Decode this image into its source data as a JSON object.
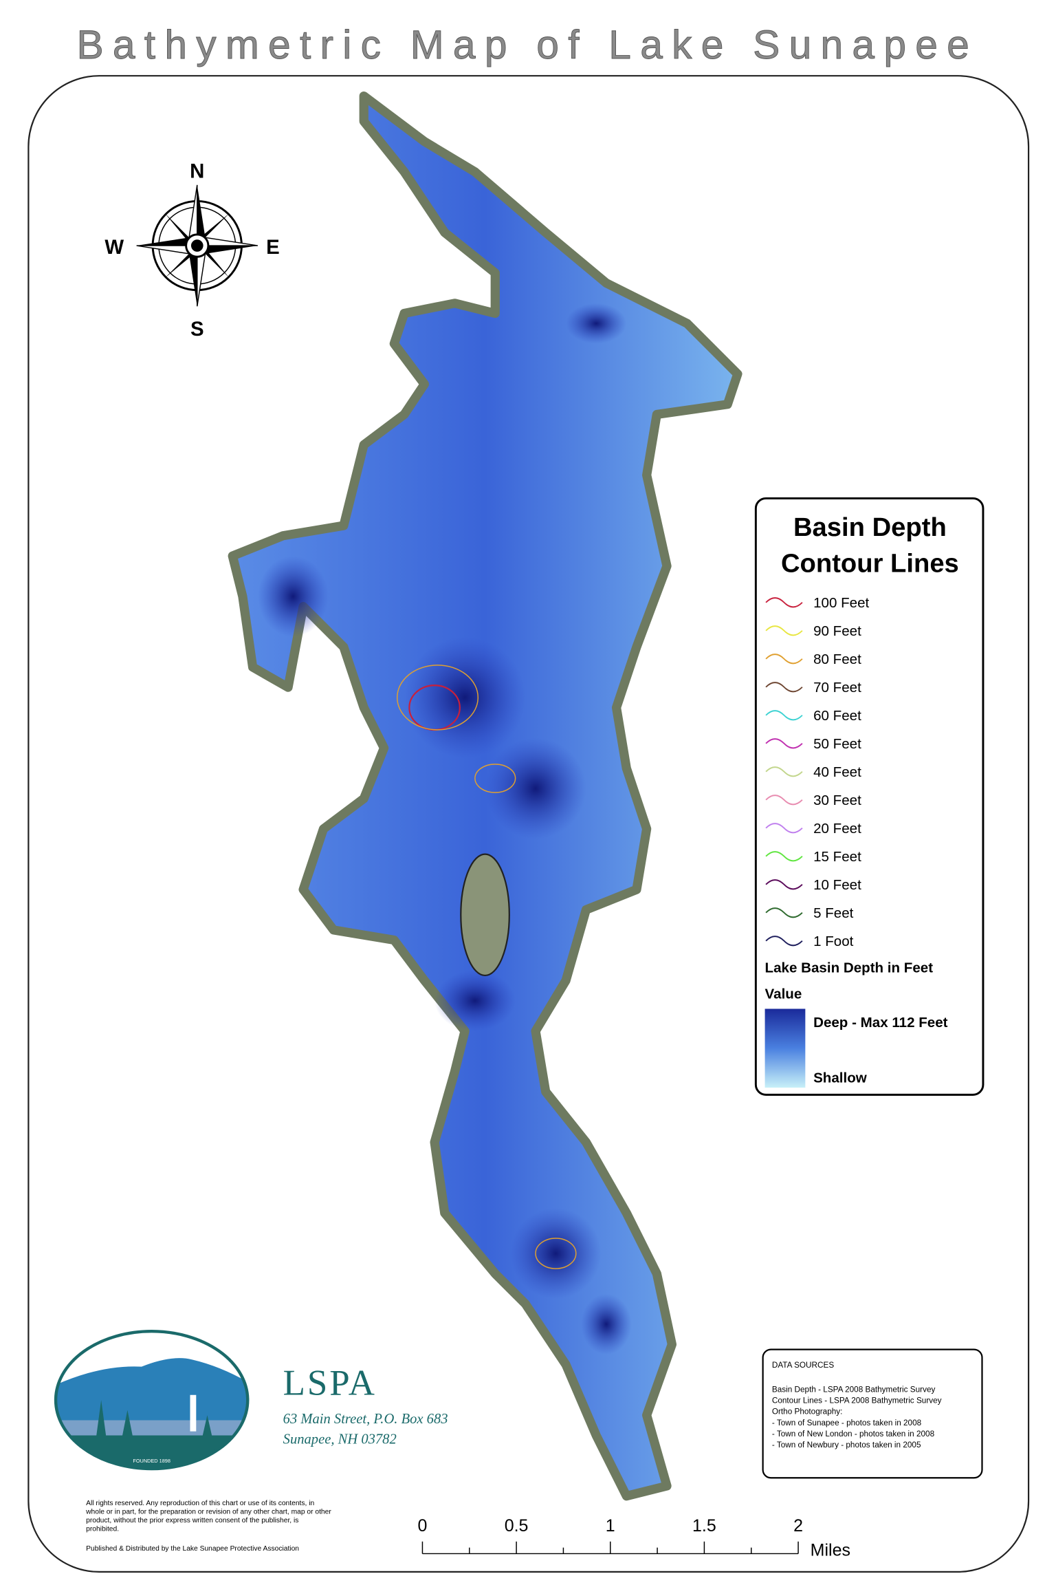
{
  "title": "Bathymetric Map of Lake Sunapee",
  "compass": {
    "north": "N",
    "south": "S",
    "east": "E",
    "west": "W"
  },
  "legend": {
    "title_lines": [
      "Basin Depth",
      "Contour Lines"
    ],
    "items": [
      {
        "name": "100 Feet",
        "color": "#c8203c"
      },
      {
        "name": "90 Feet",
        "color": "#e8e640"
      },
      {
        "name": "80 Feet",
        "color": "#e0a030"
      },
      {
        "name": "70 Feet",
        "color": "#6e4632"
      },
      {
        "name": "60 Feet",
        "color": "#3cd2d2"
      },
      {
        "name": "50 Feet",
        "color": "#c030b0"
      },
      {
        "name": "40 Feet",
        "color": "#c2d68c"
      },
      {
        "name": "30 Feet",
        "color": "#e88cb0"
      },
      {
        "name": "20 Feet",
        "color": "#c080ee"
      },
      {
        "name": "15 Feet",
        "color": "#60e640"
      },
      {
        "name": "10 Feet",
        "color": "#5a0a5a"
      },
      {
        "name": "5 Feet",
        "color": "#2e6a2e"
      },
      {
        "name": "1 Foot",
        "color": "#20205e"
      }
    ],
    "depth_title": "Lake Basin Depth in Feet",
    "value_label": "Value",
    "deep_label": "Deep -  Max 112 Feet",
    "shallow_label": "Shallow",
    "deep_color": "#1a2a9a",
    "shallow_color": "#c8f0f8"
  },
  "data_sources": {
    "title": "DATA SOURCES",
    "lines": [
      "Basin Depth - LSPA 2008 Bathymetric Survey",
      "Contour Lines - LSPA 2008 Bathymetric Survey",
      "Ortho Photography:",
      "- Town of Sunapee - photos taken in 2008",
      "- Town of New London - photos taken in 2008",
      "- Town of Newbury - photos taken in 2005"
    ]
  },
  "logo": {
    "name": "LSPA",
    "address_lines": [
      "63 Main Street, P.O. Box 683",
      "Sunapee, NH 03782"
    ],
    "founded": "FOUNDED 1898"
  },
  "copyright_lines": [
    "All rights reserved. Any reproduction of this chart or use of its contents, in",
    "whole or in part, for the preparation or revision of any other chart, map or other",
    "product, without the prior express written consent of the publisher, is",
    "prohibited."
  ],
  "published": "Published & Distributed by the Lake Sunapee Protective Association",
  "scale_bar": {
    "ticks": [
      0,
      0.5,
      1,
      1.5,
      2
    ],
    "unit": "Miles"
  }
}
